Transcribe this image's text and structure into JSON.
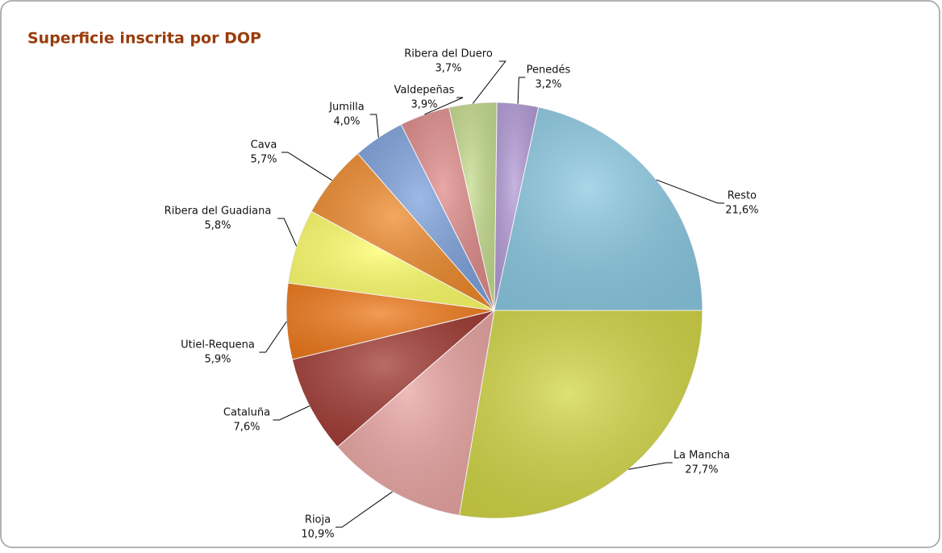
{
  "chart_data": {
    "type": "pie",
    "title": "Superficie inscrita por DOP",
    "categories": [
      "La Mancha",
      "Rioja",
      "Cataluña",
      "Utiel-Requena",
      "Ribera del Guadiana",
      "Cava",
      "Jumilla",
      "Valdepeñas",
      "Ribera del Duero",
      "Penedés",
      "Resto"
    ],
    "values": [
      27.7,
      10.9,
      7.6,
      5.9,
      5.8,
      5.7,
      4.0,
      3.9,
      3.7,
      3.2,
      21.6
    ],
    "value_labels": [
      "27,7%",
      "10,9%",
      "7,6%",
      "5,9%",
      "5,8%",
      "5,7%",
      "4,0%",
      "3,9%",
      "3,7%",
      "3,2%",
      "21,6%"
    ],
    "colors": [
      "#d2d646",
      "#e9a5a2",
      "#a13a33",
      "#f07a1c",
      "#fefe6a",
      "#ee8a2c",
      "#7ea2dc",
      "#df8c8a",
      "#c5dc8e",
      "#b39bd7",
      "#8cc9e2"
    ]
  }
}
